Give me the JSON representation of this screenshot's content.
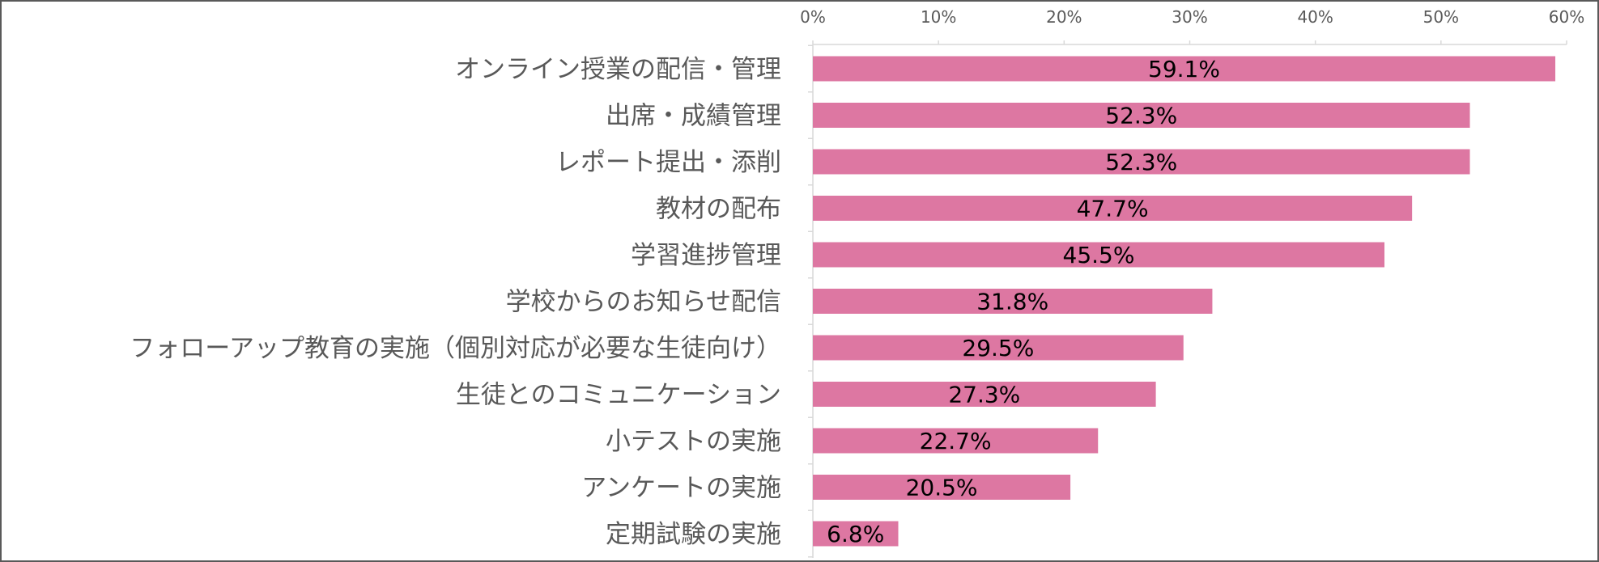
{
  "chart_data": {
    "type": "bar",
    "orientation": "horizontal",
    "categories": [
      "オンライン授業の配信・管理",
      "出席・成績管理",
      "レポート提出・添削",
      "教材の配布",
      "学習進捗管理",
      "学校からのお知らせ配信",
      "フォローアップ教育の実施（個別対応が必要な生徒向け）",
      "生徒とのコミュニケーション",
      "小テストの実施",
      "アンケートの実施",
      "定期試験の実施"
    ],
    "values": [
      59.1,
      52.3,
      52.3,
      47.7,
      45.5,
      31.8,
      29.5,
      27.3,
      22.7,
      20.5,
      6.8
    ],
    "data_labels": [
      "59.1%",
      "52.3%",
      "52.3%",
      "47.7%",
      "45.5%",
      "31.8%",
      "29.5%",
      "27.3%",
      "22.7%",
      "20.5%",
      "6.8%"
    ],
    "xlim": [
      0,
      60
    ],
    "x_ticks": [
      0,
      10,
      20,
      30,
      40,
      50,
      60
    ],
    "x_tick_labels": [
      "0%",
      "10%",
      "20%",
      "30%",
      "40%",
      "50%",
      "60%"
    ],
    "x_axis_position": "top",
    "grid": false,
    "legend": "none",
    "bar_color": "#dd77a2",
    "text_color": "#595959",
    "label_color": "#000000",
    "axis_color": "#d9d9d9"
  }
}
